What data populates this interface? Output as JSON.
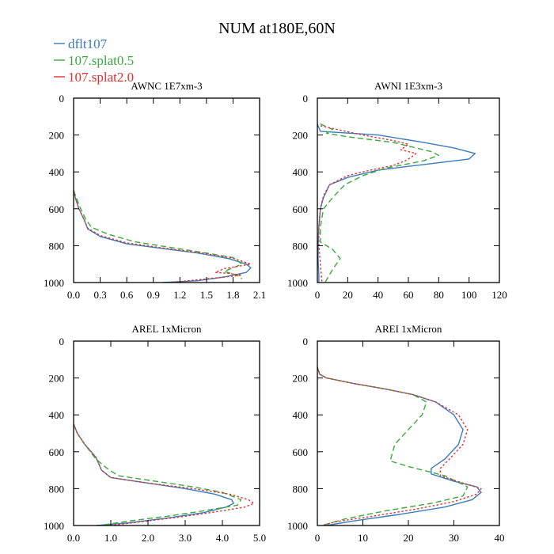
{
  "title": "NUM at180E,60N",
  "legend": [
    {
      "label": "dflt107",
      "color": "#3b7bbf",
      "dash": "solid"
    },
    {
      "label": "107.splat0.5",
      "color": "#3aa93a",
      "dash": "dashed"
    },
    {
      "label": "107.splat2.0",
      "color": "#e03030",
      "dash": "dotted"
    }
  ],
  "chart_data": [
    {
      "type": "line",
      "title": "AWNC  1E7xm-3",
      "xlim": [
        0,
        2.1
      ],
      "ylim": [
        0,
        1000
      ],
      "y_inverted": true,
      "xticks": [
        0,
        0.3,
        0.6,
        0.9,
        1.2,
        1.5,
        1.8,
        2.1
      ],
      "xtick_labels": [
        "0.0",
        "0.3",
        "0.6",
        "0.9",
        "1.2",
        "1.5",
        "1.8",
        "2.1"
      ],
      "yticks": [
        0,
        200,
        400,
        600,
        800,
        1000
      ],
      "ytick_labels": [
        "0",
        "200",
        "400",
        "600",
        "800",
        "1000"
      ],
      "series": [
        {
          "name": "dflt107",
          "x": [
            0,
            0.02,
            0.06,
            0.12,
            0.16,
            0.3,
            0.6,
            1.0,
            1.4,
            1.75,
            1.95,
            2.0,
            1.95,
            1.7,
            1.4,
            1.0
          ],
          "y": [
            500,
            540,
            600,
            660,
            710,
            750,
            790,
            815,
            840,
            870,
            900,
            920,
            945,
            970,
            990,
            1000
          ]
        },
        {
          "name": "107.splat0.5",
          "x": [
            0,
            0.03,
            0.08,
            0.14,
            0.2,
            0.4,
            0.7,
            1.1,
            1.5,
            1.8,
            1.9,
            1.8,
            1.7,
            1.85,
            1.9
          ],
          "y": [
            500,
            540,
            600,
            660,
            700,
            740,
            780,
            810,
            840,
            865,
            900,
            920,
            940,
            960,
            980
          ]
        },
        {
          "name": "107.splat2.0",
          "x": [
            0,
            0.02,
            0.06,
            0.12,
            0.16,
            0.3,
            0.6,
            1.0,
            1.45,
            1.8,
            2.0,
            1.7,
            1.6,
            1.75,
            1.9,
            1.6,
            1.3,
            1.1
          ],
          "y": [
            500,
            540,
            600,
            660,
            705,
            745,
            785,
            812,
            840,
            868,
            900,
            925,
            945,
            950,
            960,
            975,
            990,
            1000
          ]
        }
      ]
    },
    {
      "type": "line",
      "title": "AWNI  1E3xm-3",
      "xlim": [
        0,
        120
      ],
      "ylim": [
        0,
        1000
      ],
      "y_inverted": true,
      "xticks": [
        0,
        20,
        40,
        60,
        80,
        100,
        120
      ],
      "xtick_labels": [
        "0",
        "20",
        "40",
        "60",
        "80",
        "100",
        "120"
      ],
      "yticks": [
        0,
        200,
        400,
        600,
        800,
        1000
      ],
      "ytick_labels": [
        "0",
        "200",
        "400",
        "600",
        "800",
        "1000"
      ],
      "series": [
        {
          "name": "dflt107",
          "x": [
            0,
            2,
            40,
            70,
            90,
            104,
            100,
            70,
            40,
            20,
            8,
            4,
            2,
            1,
            0.5,
            0.5,
            1,
            1
          ],
          "y": [
            140,
            180,
            200,
            240,
            270,
            300,
            330,
            360,
            390,
            430,
            470,
            540,
            600,
            700,
            800,
            880,
            960,
            1000
          ]
        },
        {
          "name": "107.splat0.5",
          "x": [
            2,
            10,
            6,
            20,
            50,
            65,
            75,
            80,
            70,
            45,
            30,
            18,
            10,
            4,
            2,
            2,
            10,
            15,
            10,
            5
          ],
          "y": [
            140,
            170,
            190,
            210,
            240,
            270,
            290,
            310,
            340,
            380,
            420,
            470,
            540,
            600,
            700,
            780,
            820,
            870,
            930,
            1000
          ]
        },
        {
          "name": "107.splat2.0",
          "x": [
            2,
            30,
            50,
            60,
            55,
            65,
            62,
            58,
            50,
            35,
            20,
            8,
            4,
            2,
            1,
            1,
            2,
            3
          ],
          "y": [
            150,
            200,
            230,
            250,
            280,
            300,
            320,
            340,
            365,
            390,
            420,
            470,
            530,
            600,
            700,
            800,
            900,
            1000
          ]
        }
      ]
    },
    {
      "type": "line",
      "title": "AREL  1xMicron",
      "xlim": [
        0,
        5
      ],
      "ylim": [
        0,
        1000
      ],
      "y_inverted": true,
      "xticks": [
        0,
        1,
        2,
        3,
        4,
        5
      ],
      "xtick_labels": [
        "0.0",
        "1.0",
        "2.0",
        "3.0",
        "4.0",
        "5.0"
      ],
      "yticks": [
        0,
        200,
        400,
        600,
        800,
        1000
      ],
      "ytick_labels": [
        "0",
        "200",
        "400",
        "600",
        "800",
        "1000"
      ],
      "series": [
        {
          "name": "dflt107",
          "x": [
            0,
            0.1,
            0.3,
            0.6,
            0.75,
            1.0,
            2.0,
            3.0,
            3.8,
            4.25,
            4.3,
            4.1,
            3.5,
            2.5,
            1.5,
            0.6
          ],
          "y": [
            450,
            500,
            560,
            630,
            700,
            740,
            770,
            800,
            830,
            860,
            880,
            900,
            930,
            960,
            985,
            1000
          ]
        },
        {
          "name": "107.splat0.5",
          "x": [
            0,
            0.1,
            0.3,
            0.6,
            0.9,
            1.2,
            2.2,
            3.2,
            4.0,
            4.5,
            4.4,
            3.5,
            2.5,
            1.5,
            0.7
          ],
          "y": [
            450,
            500,
            560,
            640,
            690,
            730,
            760,
            790,
            820,
            860,
            890,
            920,
            950,
            975,
            1000
          ]
        },
        {
          "name": "107.splat2.0",
          "x": [
            0,
            0.1,
            0.3,
            0.6,
            0.75,
            1.0,
            2.0,
            3.2,
            4.2,
            4.7,
            4.85,
            4.6,
            4.0,
            3.0,
            2.0,
            1.0
          ],
          "y": [
            450,
            500,
            560,
            630,
            700,
            740,
            770,
            800,
            830,
            860,
            880,
            900,
            920,
            950,
            975,
            1000
          ]
        }
      ]
    },
    {
      "type": "line",
      "title": "AREI  1xMicron",
      "xlim": [
        0,
        40
      ],
      "ylim": [
        0,
        1000
      ],
      "y_inverted": true,
      "xticks": [
        0,
        10,
        20,
        30,
        40
      ],
      "xtick_labels": [
        "0",
        "10",
        "20",
        "30",
        "40"
      ],
      "yticks": [
        0,
        200,
        400,
        600,
        800,
        1000
      ],
      "ytick_labels": [
        "0",
        "200",
        "400",
        "600",
        "800",
        "1000"
      ],
      "series": [
        {
          "name": "dflt107",
          "x": [
            0,
            0.5,
            2,
            8,
            15,
            21,
            26,
            30,
            32,
            31,
            28,
            25,
            25,
            30,
            35,
            36,
            34,
            28,
            18,
            8,
            2
          ],
          "y": [
            140,
            180,
            200,
            230,
            260,
            290,
            330,
            400,
            480,
            560,
            640,
            690,
            720,
            760,
            790,
            820,
            860,
            900,
            940,
            975,
            1000
          ]
        },
        {
          "name": "107.splat0.5",
          "x": [
            0,
            0.5,
            2,
            8,
            15,
            21,
            24,
            23,
            20,
            17,
            16,
            20,
            28,
            33,
            32,
            25,
            15,
            6,
            1
          ],
          "y": [
            140,
            180,
            200,
            230,
            260,
            290,
            330,
            400,
            480,
            560,
            650,
            680,
            730,
            790,
            840,
            880,
            920,
            965,
            1000
          ]
        },
        {
          "name": "107.splat2.0",
          "x": [
            0,
            0.5,
            2,
            8,
            15,
            21,
            26,
            31,
            33,
            32,
            29,
            27,
            27,
            32,
            36,
            35,
            30,
            22,
            12,
            4,
            1
          ],
          "y": [
            140,
            180,
            200,
            230,
            260,
            290,
            330,
            400,
            480,
            560,
            640,
            690,
            730,
            770,
            800,
            830,
            870,
            910,
            950,
            980,
            1000
          ]
        }
      ]
    }
  ]
}
